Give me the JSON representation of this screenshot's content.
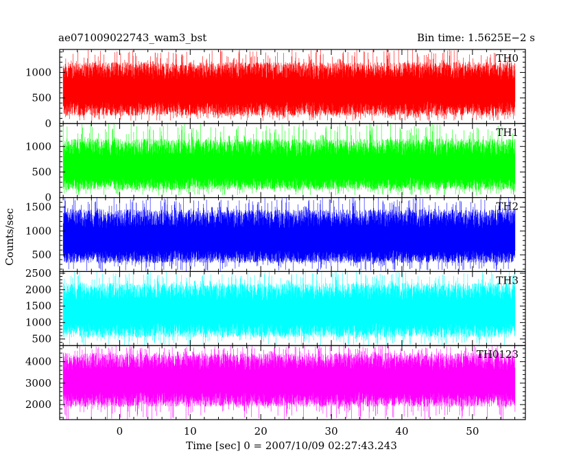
{
  "header": {
    "left_title": "ae071009022743_wam3_bst",
    "right_title": "Bin time: 1.5625E−2 s"
  },
  "chart_data": {
    "type": "line",
    "title": "ae071009022743_wam3_bst",
    "subtitle": "Bin time: 1.5625E−2 s",
    "xlabel": "Time [sec] 0 = 2007/10/09 02:27:43.243",
    "ylabel": "Counts/sec",
    "bin_time_s": 0.015625,
    "xlim": [
      -8.5,
      57.5
    ],
    "data_x_range": [
      -8.0,
      56.0
    ],
    "x_ticks": [
      0,
      10,
      20,
      30,
      40,
      50
    ],
    "x_tick_labels": [
      "0",
      "10",
      "20",
      "30",
      "40",
      "50"
    ],
    "grid": false,
    "panels": [
      {
        "name": "TH0",
        "color": "#ff0000",
        "ylim": [
          0,
          1450
        ],
        "y_ticks": [
          0,
          500,
          1000
        ],
        "y_tick_labels": [
          "0",
          "500",
          "1000"
        ],
        "typical_range": [
          150,
          1200
        ],
        "envelope_range": [
          50,
          1450
        ],
        "mean": 620
      },
      {
        "name": "TH1",
        "color": "#00ff00",
        "ylim": [
          0,
          1450
        ],
        "y_ticks": [
          0,
          500,
          1000
        ],
        "y_tick_labels": [
          "0",
          "500",
          "1000"
        ],
        "typical_range": [
          150,
          1150
        ],
        "envelope_range": [
          40,
          1450
        ],
        "mean": 560
      },
      {
        "name": "TH2",
        "color": "#0000ff",
        "ylim": [
          150,
          1700
        ],
        "y_ticks": [
          500,
          1000,
          1500
        ],
        "y_tick_labels": [
          "500",
          "1000",
          "1500"
        ],
        "typical_range": [
          330,
          1450
        ],
        "envelope_range": [
          150,
          1700
        ],
        "mean": 780
      },
      {
        "name": "TH3",
        "color": "#00ffff",
        "ylim": [
          300,
          2550
        ],
        "y_ticks": [
          500,
          1000,
          1500,
          2000,
          2500
        ],
        "y_tick_labels": [
          "500",
          "1000",
          "1500",
          "2000",
          "2500"
        ],
        "typical_range": [
          550,
          2200
        ],
        "envelope_range": [
          300,
          2550
        ],
        "mean": 1300
      },
      {
        "name": "TH0123",
        "color": "#ff00ff",
        "ylim": [
          1300,
          4750
        ],
        "y_ticks": [
          2000,
          3000,
          4000
        ],
        "y_tick_labels": [
          "2000",
          "3000",
          "4000"
        ],
        "typical_range": [
          1900,
          4400
        ],
        "envelope_range": [
          1300,
          4750
        ],
        "mean": 3050
      }
    ]
  }
}
